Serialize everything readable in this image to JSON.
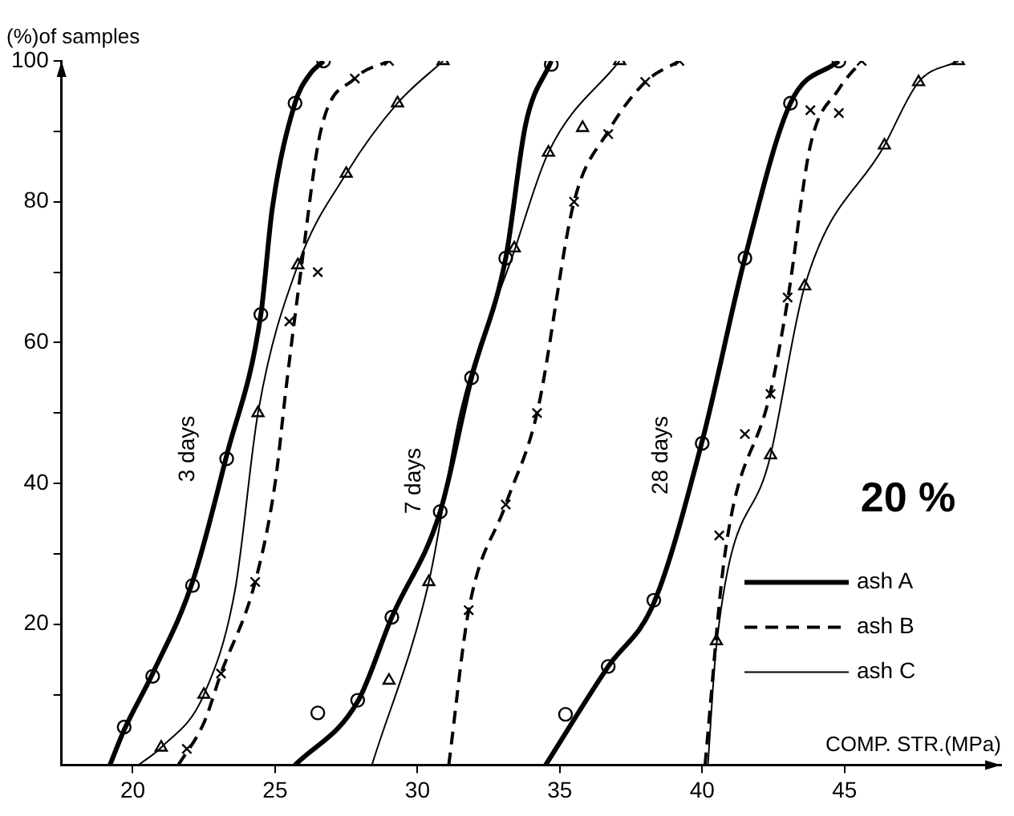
{
  "chart_data": {
    "type": "line",
    "xlabel": "COMP. STR.(MPa)",
    "ylabel": "(%)of samples",
    "xlim": [
      17.5,
      50.5
    ],
    "xticks": [
      20,
      25,
      30,
      35,
      40,
      45
    ],
    "ylim": [
      0,
      100
    ],
    "yticks": [
      {
        "value": 10,
        "label": null
      },
      20,
      {
        "value": 30,
        "label": null
      },
      40,
      {
        "value": 50,
        "label": null
      },
      60,
      {
        "value": 70,
        "label": null
      },
      80,
      {
        "value": 90,
        "label": null
      },
      100
    ],
    "grid": false,
    "legend": "bottom right",
    "annotations": [
      "3 days",
      "7 days",
      "28 days",
      "20 %"
    ],
    "series": [
      {
        "name": "ash A",
        "color": "#000000",
        "line_style": "solid",
        "marker": "none",
        "x": [
          19.2,
          19.7,
          20.7,
          22.1,
          23.3,
          24.5,
          24.9,
          25.7,
          26.2,
          26.7
        ],
        "values": [
          0,
          5,
          13,
          26,
          44,
          64,
          79,
          94,
          98,
          100
        ]
      },
      {
        "name": "ash B",
        "color": "#000000",
        "line_style": "dashed",
        "marker": "none",
        "x": [
          21.6,
          22.5,
          23.1,
          24.3,
          25,
          25.4,
          25.9,
          26.6,
          27.8,
          29
        ],
        "values": [
          0,
          6,
          13,
          26,
          40,
          54,
          70,
          90,
          97.5,
          100
        ]
      },
      {
        "name": "ash C",
        "color": "#000000",
        "line_style": "solid",
        "marker": "none",
        "x": [
          20.2,
          21,
          22.5,
          23.6,
          24.4,
          25.8,
          27.5,
          29.3,
          30.9
        ],
        "values": [
          0,
          2.5,
          10,
          25,
          50,
          71,
          84,
          94,
          100
        ]
      },
      {
        "color": "#000000",
        "line_style": "solid",
        "marker": "none",
        "x": [
          25.7,
          27.9,
          29.1,
          30.8,
          31.9,
          33.1,
          33.8,
          34.7
        ],
        "values": [
          0,
          9,
          21,
          36,
          55,
          72,
          91,
          100
        ]
      },
      {
        "color": "#000000",
        "line_style": "dashed",
        "marker": "none",
        "x": [
          31.1,
          31.8,
          33.1,
          34.2,
          35.5,
          36.7,
          38,
          39.2
        ],
        "values": [
          0,
          22,
          37,
          50,
          80,
          90,
          97,
          100
        ]
      },
      {
        "color": "#000000",
        "line_style": "solid",
        "marker": "none",
        "x": [
          28.4,
          30.4,
          31.5,
          33.4,
          34.6,
          37.1
        ],
        "values": [
          0,
          26,
          50,
          73,
          87,
          100
        ]
      },
      {
        "color": "#000000",
        "line_style": "solid",
        "marker": "none",
        "x": [
          34.5,
          36.7,
          38.3,
          40,
          41.5,
          43.1,
          44.8
        ],
        "values": [
          0,
          14,
          23,
          46,
          72,
          94,
          100
        ]
      },
      {
        "color": "#000000",
        "line_style": "dashed",
        "marker": "none",
        "x": [
          40.1,
          40.8,
          42.4,
          43,
          43.8,
          44.8,
          45.6
        ],
        "values": [
          0,
          30,
          53,
          66,
          88,
          96,
          100
        ]
      },
      {
        "color": "#000000",
        "line_style": "solid",
        "marker": "none",
        "x": [
          40.2,
          40.5,
          42.4,
          43.6,
          46.4,
          47.6,
          49
        ],
        "values": [
          0,
          17,
          44,
          68,
          88,
          97,
          100
        ]
      },
      {
        "type": "scatter",
        "color": "#000000",
        "marker": "circle",
        "x": [
          19.7,
          20.7,
          22.1,
          23.3,
          24.5,
          25.7,
          26.7
        ],
        "values": [
          5.4,
          12.6,
          25.5,
          43.5,
          64,
          94,
          100
        ]
      },
      {
        "type": "scatter",
        "color": "#000000",
        "marker": "cross",
        "x": [
          21.9,
          23.1,
          24.3,
          25.5,
          26.5,
          27.8,
          29
        ],
        "values": [
          2.3,
          13,
          26,
          63,
          70,
          97.5,
          100
        ]
      },
      {
        "type": "scatter",
        "color": "#000000",
        "marker": "triangle",
        "x": [
          21,
          22.5,
          24.4,
          25.8,
          27.5,
          29.3,
          30.9
        ],
        "values": [
          2.5,
          10,
          50,
          71,
          84,
          94,
          100
        ]
      },
      {
        "type": "scatter",
        "color": "#000000",
        "marker": "circle",
        "x": [
          26.5,
          27.9,
          29.1,
          30.8,
          31.9,
          33.1,
          34.7
        ],
        "values": [
          7.4,
          9.2,
          21,
          36,
          55,
          72,
          99.5
        ]
      },
      {
        "type": "scatter",
        "color": "#000000",
        "marker": "cross",
        "x": [
          31.8,
          33.1,
          34.2,
          35.5,
          36.7,
          38,
          39.2
        ],
        "values": [
          22,
          37,
          50,
          80,
          89.6,
          97,
          100
        ]
      },
      {
        "type": "scatter",
        "color": "#000000",
        "marker": "triangle",
        "x": [
          29,
          30.4,
          33.4,
          34.6,
          35.8,
          37.1
        ],
        "values": [
          12,
          26,
          73.4,
          87,
          90.5,
          100
        ]
      },
      {
        "type": "scatter",
        "color": "#000000",
        "marker": "circle",
        "x": [
          35.2,
          36.7,
          38.3,
          40,
          41.5,
          43.1,
          44.8
        ],
        "values": [
          7.2,
          14,
          23.4,
          45.7,
          72,
          94,
          100
        ]
      },
      {
        "type": "scatter",
        "color": "#000000",
        "marker": "cross",
        "x": [
          40.6,
          41.5,
          42.4,
          43,
          43.8,
          44.8,
          45.6
        ],
        "values": [
          32.6,
          47,
          52.7,
          66.4,
          93,
          92.6,
          100
        ]
      },
      {
        "type": "scatter",
        "color": "#000000",
        "marker": "triangle",
        "x": [
          40.5,
          42.4,
          43.6,
          46.4,
          47.6,
          49
        ],
        "values": [
          17.6,
          44,
          68,
          88,
          97,
          100
        ]
      }
    ]
  }
}
